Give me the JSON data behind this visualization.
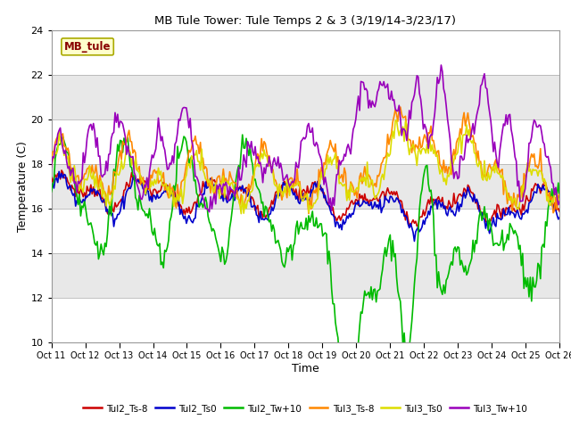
{
  "title": "MB Tule Tower: Tule Temps 2 & 3 (3/19/14-3/23/17)",
  "xlabel": "Time",
  "ylabel": "Temperature (C)",
  "ylim": [
    10,
    24
  ],
  "yticks": [
    10,
    12,
    14,
    16,
    18,
    20,
    22,
    24
  ],
  "xtick_labels": [
    "Oct 11",
    "Oct 12",
    "Oct 13",
    "Oct 14",
    "Oct 15",
    "Oct 16",
    "Oct 17",
    "Oct 18",
    "Oct 19",
    "Oct 20",
    "Oct 21",
    "Oct 22",
    "Oct 23",
    "Oct 24",
    "Oct 25",
    "Oct 26"
  ],
  "legend_labels": [
    "Tul2_Ts-8",
    "Tul2_Ts0",
    "Tul2_Tw+10",
    "Tul3_Ts-8",
    "Tul3_Ts0",
    "Tul3_Tw+10"
  ],
  "line_colors": [
    "#cc0000",
    "#0000cc",
    "#00bb00",
    "#ff8800",
    "#dddd00",
    "#9900bb"
  ],
  "watermark_text": "MB_tule",
  "watermark_bg": "#ffffcc",
  "watermark_border": "#aaaa00",
  "n_points": 400,
  "band_colors": [
    "#ffffff",
    "#e8e8e8"
  ],
  "band_ranges": [
    [
      10,
      12
    ],
    [
      12,
      14
    ],
    [
      14,
      16
    ],
    [
      16,
      18
    ],
    [
      18,
      20
    ],
    [
      20,
      22
    ],
    [
      22,
      24
    ]
  ]
}
